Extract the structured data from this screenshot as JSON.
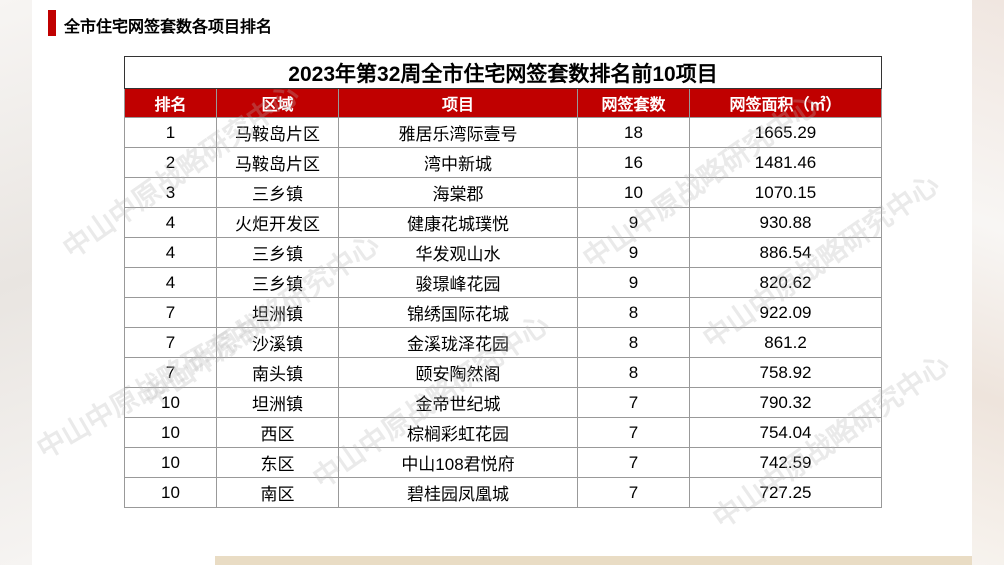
{
  "section_title": "全市住宅网签套数各项目排名",
  "watermark": "中山中原战略研究中心",
  "colors": {
    "accent": "#c00000",
    "header_text": "#ffffff"
  },
  "table": {
    "title": "2023年第32周全市住宅网签套数排名前10项目",
    "headers": [
      "排名",
      "区域",
      "项目",
      "网签套数",
      "网签面积（㎡）"
    ],
    "rows": [
      [
        "1",
        "马鞍岛片区",
        "雅居乐湾际壹号",
        "18",
        "1665.29"
      ],
      [
        "2",
        "马鞍岛片区",
        "湾中新城",
        "16",
        "1481.46"
      ],
      [
        "3",
        "三乡镇",
        "海棠郡",
        "10",
        "1070.15"
      ],
      [
        "4",
        "火炬开发区",
        "健康花城璞悦",
        "9",
        "930.88"
      ],
      [
        "4",
        "三乡镇",
        "华发观山水",
        "9",
        "886.54"
      ],
      [
        "4",
        "三乡镇",
        "骏璟峰花园",
        "9",
        "820.62"
      ],
      [
        "7",
        "坦洲镇",
        "锦绣国际花城",
        "8",
        "922.09"
      ],
      [
        "7",
        "沙溪镇",
        "金溪珑泽花园",
        "8",
        "861.2"
      ],
      [
        "7",
        "南头镇",
        "颐安陶然阁",
        "8",
        "758.92"
      ],
      [
        "10",
        "坦洲镇",
        "金帝世纪城",
        "7",
        "790.32"
      ],
      [
        "10",
        "西区",
        "棕榈彩虹花园",
        "7",
        "754.04"
      ],
      [
        "10",
        "东区",
        "中山108君悦府",
        "7",
        "742.59"
      ],
      [
        "10",
        "南区",
        "碧桂园凤凰城",
        "7",
        "727.25"
      ]
    ]
  }
}
